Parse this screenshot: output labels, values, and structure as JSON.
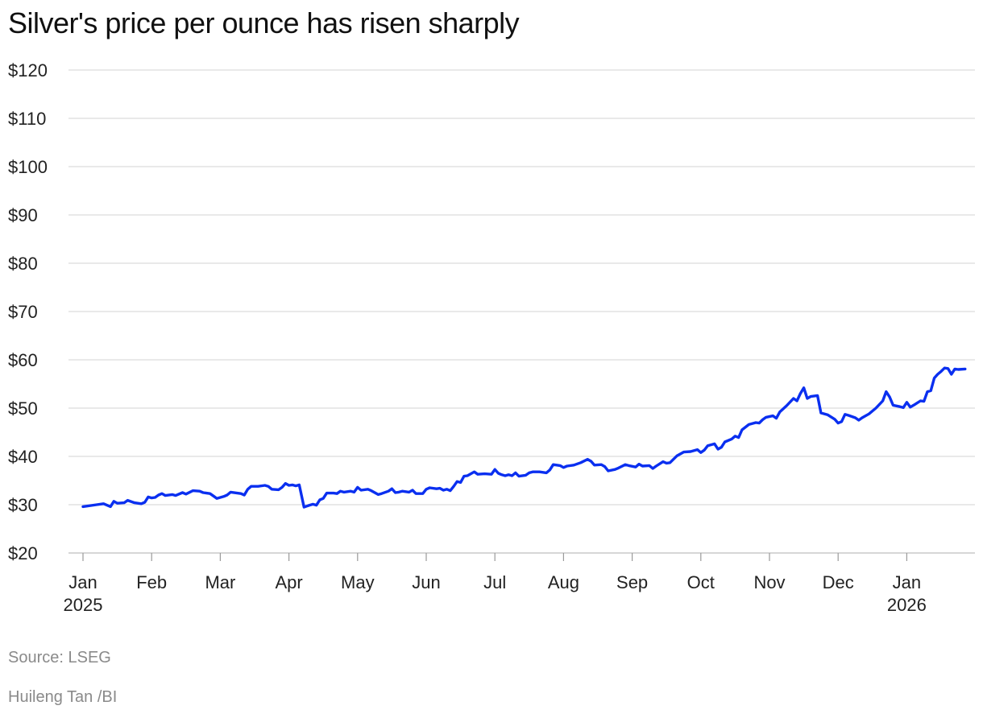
{
  "chart_data": {
    "type": "line",
    "title": "Silver's price per ounce has risen sharply",
    "xlabel": "",
    "ylabel": "",
    "ylim": [
      20,
      120
    ],
    "y_ticks": [
      20,
      30,
      40,
      50,
      60,
      70,
      80,
      90,
      100,
      110,
      120
    ],
    "y_tick_labels": [
      "$20",
      "$30",
      "$40",
      "$50",
      "$60",
      "$70",
      "$80",
      "$90",
      "$100",
      "$110",
      "$120"
    ],
    "x_unit": "months since Jan 1, 2025",
    "xlim": [
      0,
      12.9
    ],
    "x_ticks": [
      {
        "x": 0,
        "label": "Jan",
        "sublabel": "2025"
      },
      {
        "x": 1,
        "label": "Feb",
        "sublabel": ""
      },
      {
        "x": 2,
        "label": "Mar",
        "sublabel": ""
      },
      {
        "x": 3,
        "label": "Apr",
        "sublabel": ""
      },
      {
        "x": 4,
        "label": "May",
        "sublabel": ""
      },
      {
        "x": 5,
        "label": "Jun",
        "sublabel": ""
      },
      {
        "x": 6,
        "label": "Jul",
        "sublabel": ""
      },
      {
        "x": 7,
        "label": "Aug",
        "sublabel": ""
      },
      {
        "x": 8,
        "label": "Sep",
        "sublabel": ""
      },
      {
        "x": 9,
        "label": "Oct",
        "sublabel": ""
      },
      {
        "x": 10,
        "label": "Nov",
        "sublabel": ""
      },
      {
        "x": 11,
        "label": "Dec",
        "sublabel": ""
      },
      {
        "x": 12,
        "label": "Jan",
        "sublabel": "2026"
      }
    ],
    "series": [
      {
        "name": "Silver price per ounce (USD)",
        "color": "#0a2ff0",
        "points": [
          [
            0.0,
            29.6
          ],
          [
            0.2,
            30.0
          ],
          [
            0.3,
            30.2
          ],
          [
            0.4,
            29.6
          ],
          [
            0.45,
            30.7
          ],
          [
            0.5,
            30.3
          ],
          [
            0.6,
            30.4
          ],
          [
            0.65,
            30.9
          ],
          [
            0.75,
            30.4
          ],
          [
            0.85,
            30.2
          ],
          [
            0.9,
            30.5
          ],
          [
            0.95,
            31.6
          ],
          [
            1.0,
            31.4
          ],
          [
            1.05,
            31.5
          ],
          [
            1.1,
            32.0
          ],
          [
            1.15,
            32.3
          ],
          [
            1.2,
            31.9
          ],
          [
            1.3,
            32.1
          ],
          [
            1.35,
            31.9
          ],
          [
            1.45,
            32.5
          ],
          [
            1.5,
            32.2
          ],
          [
            1.6,
            32.9
          ],
          [
            1.7,
            32.8
          ],
          [
            1.75,
            32.5
          ],
          [
            1.85,
            32.3
          ],
          [
            1.9,
            31.8
          ],
          [
            1.95,
            31.3
          ],
          [
            2.05,
            31.7
          ],
          [
            2.1,
            32.0
          ],
          [
            2.15,
            32.6
          ],
          [
            2.3,
            32.3
          ],
          [
            2.35,
            32.0
          ],
          [
            2.4,
            33.2
          ],
          [
            2.45,
            33.8
          ],
          [
            2.55,
            33.8
          ],
          [
            2.65,
            34.0
          ],
          [
            2.7,
            33.8
          ],
          [
            2.75,
            33.2
          ],
          [
            2.85,
            33.1
          ],
          [
            2.9,
            33.6
          ],
          [
            2.95,
            34.4
          ],
          [
            3.0,
            34.0
          ],
          [
            3.05,
            34.1
          ],
          [
            3.1,
            33.9
          ],
          [
            3.15,
            34.1
          ],
          [
            3.22,
            29.5
          ],
          [
            3.3,
            29.9
          ],
          [
            3.35,
            30.1
          ],
          [
            3.4,
            29.9
          ],
          [
            3.45,
            31.0
          ],
          [
            3.5,
            31.3
          ],
          [
            3.55,
            32.4
          ],
          [
            3.65,
            32.4
          ],
          [
            3.7,
            32.3
          ],
          [
            3.75,
            32.8
          ],
          [
            3.8,
            32.6
          ],
          [
            3.9,
            32.8
          ],
          [
            3.95,
            32.6
          ],
          [
            4.0,
            33.6
          ],
          [
            4.05,
            33.0
          ],
          [
            4.15,
            33.2
          ],
          [
            4.2,
            32.9
          ],
          [
            4.3,
            32.1
          ],
          [
            4.35,
            32.3
          ],
          [
            4.45,
            32.8
          ],
          [
            4.5,
            33.3
          ],
          [
            4.55,
            32.5
          ],
          [
            4.6,
            32.6
          ],
          [
            4.65,
            32.8
          ],
          [
            4.75,
            32.6
          ],
          [
            4.8,
            33.0
          ],
          [
            4.85,
            32.3
          ],
          [
            4.95,
            32.3
          ],
          [
            5.0,
            33.2
          ],
          [
            5.05,
            33.5
          ],
          [
            5.15,
            33.3
          ],
          [
            5.2,
            33.4
          ],
          [
            5.25,
            33.0
          ],
          [
            5.3,
            33.2
          ],
          [
            5.35,
            32.9
          ],
          [
            5.4,
            33.8
          ],
          [
            5.45,
            34.8
          ],
          [
            5.5,
            34.6
          ],
          [
            5.55,
            35.9
          ],
          [
            5.6,
            36.0
          ],
          [
            5.7,
            36.8
          ],
          [
            5.75,
            36.3
          ],
          [
            5.85,
            36.4
          ],
          [
            5.95,
            36.3
          ],
          [
            6.0,
            37.3
          ],
          [
            6.05,
            36.5
          ],
          [
            6.1,
            36.2
          ],
          [
            6.15,
            36.0
          ],
          [
            6.2,
            36.2
          ],
          [
            6.25,
            36.0
          ],
          [
            6.3,
            36.6
          ],
          [
            6.35,
            35.9
          ],
          [
            6.45,
            36.1
          ],
          [
            6.5,
            36.6
          ],
          [
            6.55,
            36.8
          ],
          [
            6.65,
            36.8
          ],
          [
            6.75,
            36.6
          ],
          [
            6.8,
            37.2
          ],
          [
            6.85,
            38.3
          ],
          [
            6.95,
            38.1
          ],
          [
            7.0,
            37.7
          ],
          [
            7.05,
            38.0
          ],
          [
            7.15,
            38.2
          ],
          [
            7.25,
            38.7
          ],
          [
            7.35,
            39.4
          ],
          [
            7.4,
            39.0
          ],
          [
            7.45,
            38.2
          ],
          [
            7.55,
            38.3
          ],
          [
            7.6,
            37.9
          ],
          [
            7.65,
            37.0
          ],
          [
            7.75,
            37.3
          ],
          [
            7.8,
            37.6
          ],
          [
            7.9,
            38.3
          ],
          [
            7.95,
            38.1
          ],
          [
            8.05,
            37.8
          ],
          [
            8.1,
            38.4
          ],
          [
            8.15,
            38.0
          ],
          [
            8.25,
            38.1
          ],
          [
            8.3,
            37.5
          ],
          [
            8.35,
            38.0
          ],
          [
            8.45,
            38.9
          ],
          [
            8.5,
            38.6
          ],
          [
            8.55,
            38.7
          ],
          [
            8.65,
            40.1
          ],
          [
            8.75,
            40.9
          ],
          [
            8.85,
            41.0
          ],
          [
            8.95,
            41.4
          ],
          [
            9.0,
            40.8
          ],
          [
            9.05,
            41.3
          ],
          [
            9.1,
            42.2
          ],
          [
            9.2,
            42.6
          ],
          [
            9.25,
            41.5
          ],
          [
            9.3,
            41.9
          ],
          [
            9.35,
            43.0
          ],
          [
            9.45,
            43.6
          ],
          [
            9.5,
            44.2
          ],
          [
            9.55,
            43.9
          ],
          [
            9.6,
            45.5
          ],
          [
            9.7,
            46.6
          ],
          [
            9.8,
            47.0
          ],
          [
            9.85,
            46.9
          ],
          [
            9.9,
            47.6
          ],
          [
            9.95,
            48.1
          ],
          [
            10.05,
            48.4
          ],
          [
            10.1,
            47.9
          ],
          [
            10.15,
            49.2
          ],
          [
            10.25,
            50.5
          ],
          [
            10.35,
            52.0
          ],
          [
            10.4,
            51.5
          ],
          [
            10.45,
            53.0
          ],
          [
            10.5,
            54.2
          ],
          [
            10.55,
            52.0
          ],
          [
            10.6,
            52.4
          ],
          [
            10.7,
            52.6
          ],
          [
            10.75,
            49.0
          ],
          [
            10.85,
            48.6
          ],
          [
            10.95,
            47.7
          ],
          [
            11.0,
            46.9
          ],
          [
            11.05,
            47.2
          ],
          [
            11.1,
            48.7
          ],
          [
            11.15,
            48.5
          ],
          [
            11.25,
            48.0
          ],
          [
            11.3,
            47.5
          ],
          [
            11.35,
            48.0
          ],
          [
            11.45,
            48.8
          ],
          [
            11.55,
            50.0
          ],
          [
            11.65,
            51.5
          ],
          [
            11.7,
            53.4
          ],
          [
            11.75,
            52.3
          ],
          [
            11.8,
            50.6
          ],
          [
            11.9,
            50.3
          ],
          [
            11.95,
            50.1
          ],
          [
            12.0,
            51.2
          ],
          [
            12.05,
            50.2
          ],
          [
            12.1,
            50.6
          ],
          [
            12.2,
            51.5
          ],
          [
            12.25,
            51.4
          ],
          [
            12.3,
            53.4
          ],
          [
            12.35,
            53.6
          ],
          [
            12.4,
            56.2
          ],
          [
            12.45,
            57.0
          ],
          [
            12.5,
            57.6
          ],
          [
            12.55,
            58.3
          ],
          [
            12.6,
            58.2
          ],
          [
            12.65,
            57.0
          ],
          [
            12.7,
            58.1
          ],
          [
            12.75,
            58.0
          ],
          [
            12.85,
            58.1
          ]
        ]
      }
    ],
    "line_plot_domain": [
      0,
      12.9
    ]
  },
  "footer": {
    "source": "Source: LSEG",
    "credit": "Huileng Tan /BI"
  }
}
